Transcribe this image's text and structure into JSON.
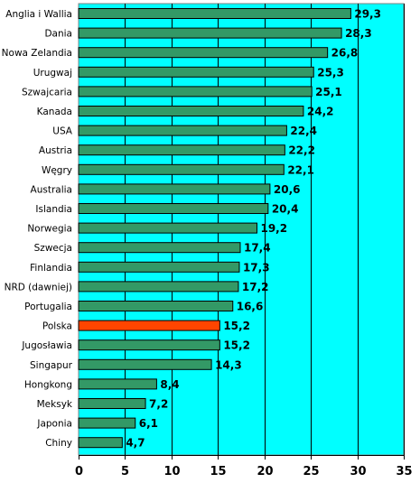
{
  "chart_data": {
    "type": "bar",
    "orientation": "horizontal",
    "categories": [
      "Anglia i Wallia",
      "Dania",
      "Nowa Zelandia",
      "Urugwaj",
      "Szwajcaria",
      "Kanada",
      "USA",
      "Austria",
      "Węgry",
      "Australia",
      "Islandia",
      "Norwegia",
      "Szwecja",
      "Finlandia",
      "NRD (dawniej)",
      "Portugalia",
      "Polska",
      "Jugosławia",
      "Singapur",
      "Hongkong",
      "Meksyk",
      "Japonia",
      "Chiny"
    ],
    "values": [
      29.3,
      28.3,
      26.8,
      25.3,
      25.1,
      24.2,
      22.4,
      22.2,
      22.1,
      20.6,
      20.4,
      19.2,
      17.4,
      17.3,
      17.2,
      16.6,
      15.2,
      15.2,
      14.3,
      8.4,
      7.2,
      6.1,
      4.7
    ],
    "value_labels": [
      "29,3",
      "28,3",
      "26,8",
      "25,3",
      "25,1",
      "24,2",
      "22,4",
      "22,2",
      "22,1",
      "20,6",
      "20,4",
      "19,2",
      "17,4",
      "17,3",
      "17,2",
      "16,6",
      "15,2",
      "15,2",
      "14,3",
      "8,4",
      "7,2",
      "6,1",
      "4,7"
    ],
    "highlight_category": "Polska",
    "xlim": [
      0,
      35
    ],
    "xticks": [
      0,
      5,
      10,
      15,
      20,
      25,
      30,
      35
    ],
    "xtick_labels": [
      "0",
      "5",
      "10",
      "15",
      "20",
      "25",
      "30",
      "35"
    ],
    "grid": true,
    "legend": "none",
    "colors": {
      "plot_background": "#00ffff",
      "bar": "#339966",
      "bar_highlight": "#ff4500",
      "bar_border": "#000000",
      "gridline": "#000000"
    }
  }
}
